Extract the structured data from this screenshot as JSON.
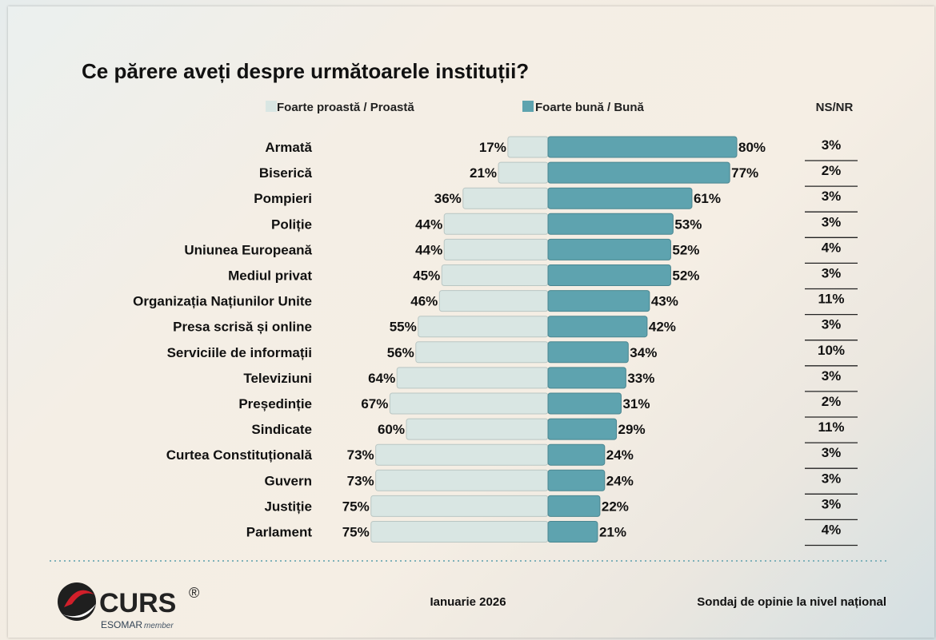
{
  "chart_data": {
    "type": "bar",
    "title": "Ce părere aveți despre următoarele instituții?",
    "legend": {
      "negative_label": "Foarte proastă / Proastă",
      "positive_label": "Foarte bună / Bună",
      "nsnr_label": "NS/NR"
    },
    "categories": [
      "Armată",
      "Biserică",
      "Pompieri",
      "Poliție",
      "Uniunea Europeană",
      "Mediul privat",
      "Organizația Națiunilor Unite",
      "Presa scrisă  și online",
      "Serviciile de informații",
      "Televiziuni",
      "Președinție",
      "Sindicate",
      "Curtea Constituțională",
      "Guvern",
      "Justiție",
      "Parlament"
    ],
    "series": [
      {
        "name": "Foarte proastă / Proastă",
        "values": [
          17,
          21,
          36,
          44,
          44,
          45,
          46,
          55,
          56,
          64,
          67,
          60,
          73,
          73,
          75,
          75
        ]
      },
      {
        "name": "Foarte bună / Bună",
        "values": [
          80,
          77,
          61,
          53,
          52,
          52,
          43,
          42,
          34,
          33,
          31,
          29,
          24,
          24,
          22,
          21
        ]
      },
      {
        "name": "NS/NR",
        "values": [
          3,
          2,
          3,
          3,
          4,
          3,
          11,
          3,
          10,
          3,
          2,
          11,
          3,
          3,
          3,
          4
        ]
      }
    ],
    "value_format": "%",
    "colors": {
      "negative": "#d9e6e3",
      "positive": "#5ea3af",
      "text": "#111111"
    }
  },
  "footer": {
    "logo_text": "CURS",
    "logo_mark": "®",
    "esomar": "ESOMAR",
    "member": "member",
    "date": "Ianuarie 2026",
    "caption": "Sondaj de opinie la nivel național"
  }
}
